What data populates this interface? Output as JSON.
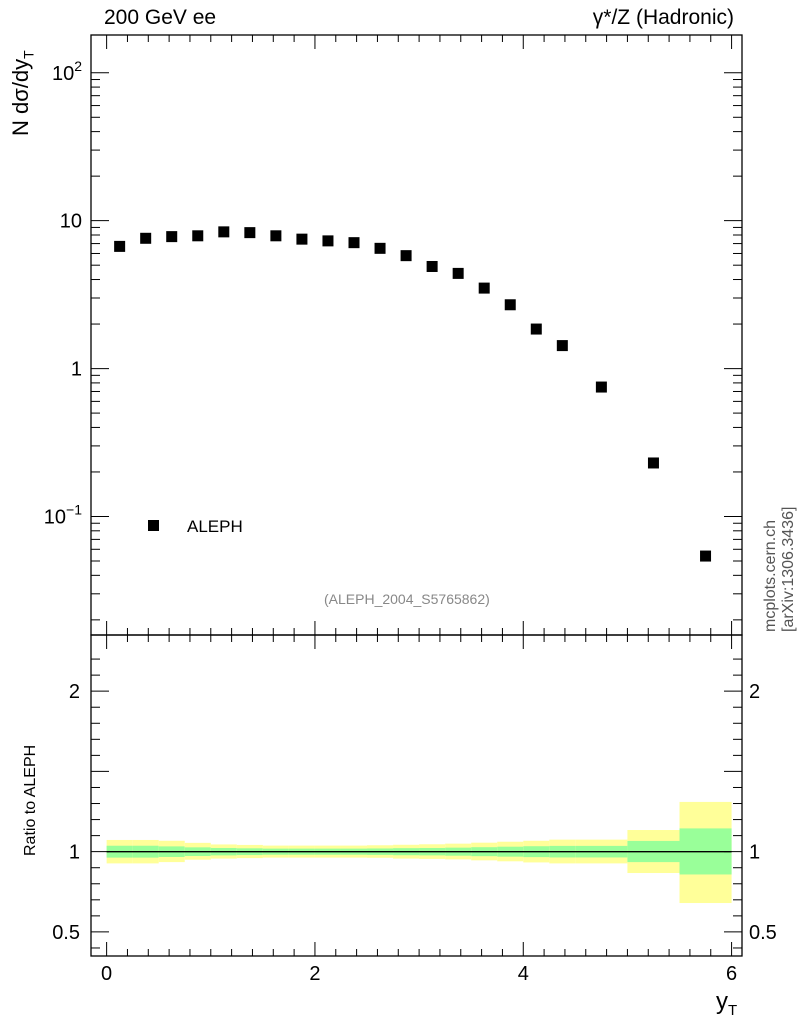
{
  "header": {
    "left": "200 GeV ee",
    "right": "γ*/Z (Hadronic)"
  },
  "side_label": "mcplots.cern.ch [arXiv:1306.3436]",
  "analysis_tag": "(ALEPH_2004_S5765862)",
  "legend": {
    "label": "ALEPH"
  },
  "colors": {
    "band_inner": "#99ff99",
    "band_outer": "#ffff99",
    "markers": "#000000"
  },
  "chart_data": [
    {
      "type": "scatter",
      "ylabel_main": "N dσ/dy",
      "ylabel_sub": "T",
      "yscale": "log",
      "ylim": [
        0.0158,
        180
      ],
      "xlim": [
        -0.15,
        6.1
      ],
      "yticks": [
        {
          "v": 0.1,
          "label": "10",
          "exp": "−1"
        },
        {
          "v": 1,
          "label": "1",
          "exp": ""
        },
        {
          "v": 10,
          "label": "10",
          "exp": ""
        },
        {
          "v": 100,
          "label": "10",
          "exp": "2"
        }
      ],
      "series": [
        {
          "name": "ALEPH",
          "x": [
            0.125,
            0.375,
            0.625,
            0.875,
            1.125,
            1.375,
            1.625,
            1.875,
            2.125,
            2.375,
            2.625,
            2.875,
            3.125,
            3.375,
            3.625,
            3.875,
            4.125,
            4.375,
            4.75,
            5.25,
            5.75
          ],
          "y": [
            6.7,
            7.6,
            7.8,
            7.9,
            8.4,
            8.3,
            7.9,
            7.5,
            7.3,
            7.1,
            6.5,
            5.8,
            4.9,
            4.4,
            3.5,
            2.7,
            1.85,
            1.43,
            0.75,
            0.23,
            0.054
          ]
        }
      ]
    },
    {
      "type": "area",
      "ylabel": "Ratio to ALEPH",
      "xlabel_main": "y",
      "xlabel_sub": "T",
      "xlim": [
        -0.15,
        6.1
      ],
      "ylim": [
        0.35,
        2.35
      ],
      "xticks": [
        0,
        2,
        4,
        6
      ],
      "yticks": [
        0.5,
        1,
        2
      ],
      "reference": 1,
      "bins": [
        {
          "lo": 0.0,
          "hi": 0.25,
          "inner": [
            0.963,
            1.037
          ],
          "outer": [
            0.927,
            1.073
          ]
        },
        {
          "lo": 0.25,
          "hi": 0.5,
          "inner": [
            0.963,
            1.037
          ],
          "outer": [
            0.927,
            1.073
          ]
        },
        {
          "lo": 0.5,
          "hi": 0.75,
          "inner": [
            0.967,
            1.033
          ],
          "outer": [
            0.935,
            1.068
          ]
        },
        {
          "lo": 0.75,
          "hi": 1.0,
          "inner": [
            0.973,
            1.027
          ],
          "outer": [
            0.95,
            1.055
          ]
        },
        {
          "lo": 1.0,
          "hi": 1.25,
          "inner": [
            0.977,
            1.023
          ],
          "outer": [
            0.957,
            1.045
          ]
        },
        {
          "lo": 1.25,
          "hi": 1.5,
          "inner": [
            0.979,
            1.021
          ],
          "outer": [
            0.96,
            1.042
          ]
        },
        {
          "lo": 1.5,
          "hi": 1.75,
          "inner": [
            0.981,
            1.019
          ],
          "outer": [
            0.963,
            1.038
          ]
        },
        {
          "lo": 1.75,
          "hi": 2.0,
          "inner": [
            0.981,
            1.019
          ],
          "outer": [
            0.963,
            1.038
          ]
        },
        {
          "lo": 2.0,
          "hi": 2.25,
          "inner": [
            0.981,
            1.019
          ],
          "outer": [
            0.963,
            1.038
          ]
        },
        {
          "lo": 2.25,
          "hi": 2.5,
          "inner": [
            0.981,
            1.019
          ],
          "outer": [
            0.963,
            1.038
          ]
        },
        {
          "lo": 2.5,
          "hi": 2.75,
          "inner": [
            0.98,
            1.02
          ],
          "outer": [
            0.962,
            1.04
          ]
        },
        {
          "lo": 2.75,
          "hi": 3.0,
          "inner": [
            0.978,
            1.022
          ],
          "outer": [
            0.957,
            1.043
          ]
        },
        {
          "lo": 3.0,
          "hi": 3.25,
          "inner": [
            0.977,
            1.023
          ],
          "outer": [
            0.955,
            1.046
          ]
        },
        {
          "lo": 3.25,
          "hi": 3.5,
          "inner": [
            0.975,
            1.025
          ],
          "outer": [
            0.952,
            1.05
          ]
        },
        {
          "lo": 3.5,
          "hi": 3.75,
          "inner": [
            0.972,
            1.028
          ],
          "outer": [
            0.946,
            1.056
          ]
        },
        {
          "lo": 3.75,
          "hi": 4.0,
          "inner": [
            0.969,
            1.031
          ],
          "outer": [
            0.94,
            1.062
          ]
        },
        {
          "lo": 4.0,
          "hi": 4.25,
          "inner": [
            0.966,
            1.034
          ],
          "outer": [
            0.933,
            1.068
          ]
        },
        {
          "lo": 4.25,
          "hi": 4.5,
          "inner": [
            0.964,
            1.036
          ],
          "outer": [
            0.927,
            1.075
          ]
        },
        {
          "lo": 4.5,
          "hi": 5.0,
          "inner": [
            0.964,
            1.036
          ],
          "outer": [
            0.927,
            1.075
          ]
        },
        {
          "lo": 5.0,
          "hi": 5.5,
          "inner": [
            0.935,
            1.067
          ],
          "outer": [
            0.867,
            1.135
          ]
        },
        {
          "lo": 5.5,
          "hi": 6.0,
          "inner": [
            0.858,
            1.145
          ],
          "outer": [
            0.68,
            1.31
          ]
        }
      ]
    }
  ]
}
